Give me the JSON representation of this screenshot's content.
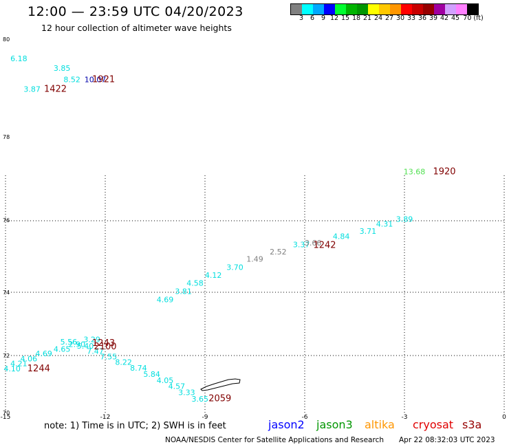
{
  "header": {
    "title": "12:00 — 23:59 UTC 04/20/2023",
    "subtitle": "12 hour collection of altimeter wave heights"
  },
  "colorbar": {
    "colors": [
      "#808080",
      "#00ffff",
      "#00a8ff",
      "#0000ff",
      "#00ff30",
      "#00b400",
      "#009600",
      "#ffff00",
      "#ffc800",
      "#ff9600",
      "#ff0000",
      "#c80000",
      "#960000",
      "#a000a0",
      "#d2a0ff",
      "#ff80ff",
      "#000000"
    ],
    "ticks": [
      "3",
      "6",
      "9",
      "12",
      "15",
      "18",
      "21",
      "24",
      "27",
      "30",
      "33",
      "36",
      "39",
      "42",
      "45",
      "70 (ft)"
    ]
  },
  "axes": {
    "x_ticks": [
      "-15",
      "-12",
      "-9",
      "-6",
      "-3",
      "0"
    ],
    "y_ticks": [
      "80",
      "78",
      "76",
      "74",
      "72",
      "70"
    ]
  },
  "swh_labels": [
    {
      "text": "6.18",
      "color": "#00dede",
      "lon": -14.6,
      "lat": 79.55
    },
    {
      "text": "3.85",
      "color": "#00dede",
      "lon": -13.3,
      "lat": 79.35
    },
    {
      "text": "8.52",
      "color": "#00dede",
      "lon": -13.0,
      "lat": 79.12
    },
    {
      "text": "10.07",
      "color": "#0000aa",
      "lon": -12.3,
      "lat": 79.12
    },
    {
      "text": "3.87",
      "color": "#00dede",
      "lon": -14.2,
      "lat": 78.92
    },
    {
      "text": "13.68",
      "color": "#50e050",
      "lon": -2.7,
      "lat": 77.1
    },
    {
      "text": "3.89",
      "color": "#00dede",
      "lon": -3.0,
      "lat": 75.95
    },
    {
      "text": "4.31",
      "color": "#00dede",
      "lon": -3.6,
      "lat": 75.82
    },
    {
      "text": "3.71",
      "color": "#00dede",
      "lon": -4.1,
      "lat": 75.62
    },
    {
      "text": "4.84",
      "color": "#00dede",
      "lon": -4.9,
      "lat": 75.48
    },
    {
      "text": "3.37",
      "color": "#00dede",
      "lon": -6.1,
      "lat": 75.25
    },
    {
      "text": "3.66",
      "color": "#808080",
      "lon": -5.75,
      "lat": 75.3
    },
    {
      "text": "2.52",
      "color": "#808080",
      "lon": -6.8,
      "lat": 75.05
    },
    {
      "text": "1.49",
      "color": "#808080",
      "lon": -7.5,
      "lat": 74.85
    },
    {
      "text": "3.70",
      "color": "#00dede",
      "lon": -8.1,
      "lat": 74.62
    },
    {
      "text": "4.12",
      "color": "#00dede",
      "lon": -8.75,
      "lat": 74.4
    },
    {
      "text": "4.58",
      "color": "#00dede",
      "lon": -9.3,
      "lat": 74.18
    },
    {
      "text": "3.81",
      "color": "#00dede",
      "lon": -9.65,
      "lat": 73.95
    },
    {
      "text": "4.69",
      "color": "#00dede",
      "lon": -10.2,
      "lat": 73.68
    },
    {
      "text": "3.29",
      "color": "#00dede",
      "lon": -12.4,
      "lat": 72.42
    },
    {
      "text": "5.56",
      "color": "#00dede",
      "lon": -13.1,
      "lat": 72.35
    },
    {
      "text": "2.90",
      "color": "#00dede",
      "lon": -12.85,
      "lat": 72.27
    },
    {
      "text": "5.40",
      "color": "#00dede",
      "lon": -12.6,
      "lat": 72.22
    },
    {
      "text": "4.65",
      "color": "#00dede",
      "lon": -13.3,
      "lat": 72.12
    },
    {
      "text": "7.47",
      "color": "#00dede",
      "lon": -12.3,
      "lat": 72.05
    },
    {
      "text": "4.69",
      "color": "#00dede",
      "lon": -13.85,
      "lat": 71.97
    },
    {
      "text": "7.55",
      "color": "#00dede",
      "lon": -11.9,
      "lat": 71.87
    },
    {
      "text": "4.06",
      "color": "#00dede",
      "lon": -14.3,
      "lat": 71.8
    },
    {
      "text": "8.22",
      "color": "#00dede",
      "lon": -11.45,
      "lat": 71.67
    },
    {
      "text": "4.21",
      "color": "#00dede",
      "lon": -14.6,
      "lat": 71.63
    },
    {
      "text": "8.74",
      "color": "#00dede",
      "lon": -11.0,
      "lat": 71.47
    },
    {
      "text": "4.10",
      "color": "#00dede",
      "lon": -14.8,
      "lat": 71.45
    },
    {
      "text": "5.84",
      "color": "#00dede",
      "lon": -10.6,
      "lat": 71.25
    },
    {
      "text": "4.05",
      "color": "#00dede",
      "lon": -10.2,
      "lat": 71.04
    },
    {
      "text": "4.57",
      "color": "#00dede",
      "lon": -9.85,
      "lat": 70.83
    },
    {
      "text": "3.33",
      "color": "#00dede",
      "lon": -9.55,
      "lat": 70.62
    },
    {
      "text": "3.65",
      "color": "#00dede",
      "lon": -9.15,
      "lat": 70.38
    }
  ],
  "time_labels": [
    {
      "text": "1921",
      "lon": -12.05,
      "lat": 79.12
    },
    {
      "text": "1422",
      "lon": -13.5,
      "lat": 78.92
    },
    {
      "text": "1920",
      "lon": -1.8,
      "lat": 77.1
    },
    {
      "text": "1242",
      "lon": -5.4,
      "lat": 75.23
    },
    {
      "text": "1243",
      "lon": -12.05,
      "lat": 72.3
    },
    {
      "text": "2100",
      "lon": -12.0,
      "lat": 72.2
    },
    {
      "text": "1244",
      "lon": -14.0,
      "lat": 71.45
    },
    {
      "text": "2059",
      "lon": -8.55,
      "lat": 70.4
    }
  ],
  "footer": {
    "note": "note: 1) Time is in UTC; 2) SWH is in feet",
    "satellites": [
      {
        "name": "jason2",
        "color": "#0000ff"
      },
      {
        "name": "jason3",
        "color": "#009600"
      },
      {
        "name": "altika",
        "color": "#ff9600"
      },
      {
        "name": "cryosat",
        "color": "#e00000"
      },
      {
        "name": "s3a",
        "color": "#960000"
      }
    ],
    "credit": "NOAA/NESDIS Center for Satellite Applications and Research",
    "timestamp": "Apr 22 08:32:03 UTC 2023"
  }
}
